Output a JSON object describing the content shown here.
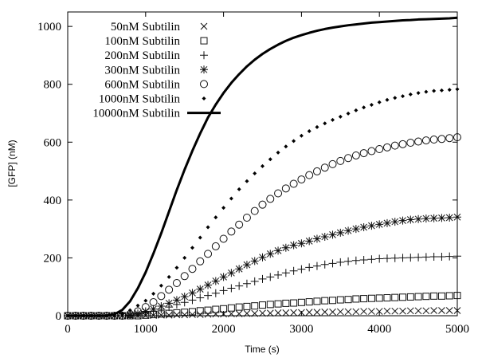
{
  "chart_data": {
    "type": "scatter",
    "title": "",
    "xlabel": "Time (s)",
    "ylabel": "[GFP] (nM)",
    "xlim": [
      0,
      5000
    ],
    "ylim": [
      0,
      1050
    ],
    "xticks": [
      0,
      1000,
      2000,
      3000,
      4000,
      5000
    ],
    "xtick_labels": [
      "0",
      "1000",
      "2000",
      "3000",
      "4000",
      "5000"
    ],
    "yticks": [
      0,
      200,
      400,
      600,
      800,
      1000
    ],
    "ytick_labels": [
      "0",
      "200",
      "400",
      "600",
      "800",
      "1000"
    ],
    "grid": false,
    "legend_position": "top-left",
    "x_start": 0,
    "x_step": 100,
    "series": [
      {
        "name": "50nM Subtilin",
        "marker": "cross-x",
        "values": [
          0,
          0,
          0,
          0,
          0,
          0,
          0,
          0,
          0,
          0,
          1,
          1,
          2,
          2,
          3,
          3,
          4,
          4,
          5,
          6,
          6,
          7,
          7,
          8,
          8,
          9,
          9,
          10,
          10,
          11,
          11,
          12,
          12,
          13,
          13,
          14,
          14,
          14,
          15,
          15,
          15,
          16,
          16,
          16,
          17,
          17,
          17,
          18,
          18,
          18,
          18
        ]
      },
      {
        "name": "100nM Subtilin",
        "marker": "square",
        "values": [
          0,
          0,
          0,
          0,
          0,
          0,
          0,
          0,
          0,
          0,
          2,
          4,
          6,
          8,
          10,
          12,
          14,
          17,
          19,
          22,
          24,
          27,
          30,
          32,
          34,
          37,
          39,
          41,
          43,
          44,
          46,
          48,
          50,
          52,
          53,
          55,
          56,
          58,
          59,
          60,
          61,
          62,
          63,
          64,
          65,
          66,
          67,
          68,
          68,
          69,
          70
        ]
      },
      {
        "name": "200nM Subtilin",
        "marker": "plus",
        "values": [
          0,
          0,
          0,
          0,
          0,
          0,
          0,
          0,
          2,
          5,
          10,
          16,
          22,
          30,
          39,
          46,
          54,
          62,
          70,
          78,
          87,
          95,
          103,
          111,
          119,
          127,
          134,
          141,
          148,
          155,
          161,
          167,
          172,
          177,
          181,
          185,
          188,
          191,
          193,
          195,
          197,
          198,
          199,
          200,
          201,
          202,
          203,
          204,
          204,
          205,
          206
        ]
      },
      {
        "name": "300nM Subtilin",
        "marker": "star",
        "values": [
          0,
          0,
          0,
          0,
          0,
          0,
          0,
          0,
          3,
          8,
          15,
          23,
          33,
          43,
          54,
          66,
          79,
          92,
          106,
          120,
          134,
          148,
          162,
          176,
          189,
          202,
          214,
          225,
          235,
          244,
          250,
          258,
          266,
          273,
          280,
          287,
          294,
          300,
          306,
          311,
          316,
          320,
          325,
          329,
          332,
          334,
          336,
          337,
          338,
          339,
          341
        ]
      },
      {
        "name": "600nM Subtilin",
        "marker": "circle",
        "values": [
          0,
          0,
          0,
          0,
          0,
          0,
          0,
          0,
          5,
          15,
          30,
          47,
          68,
          90,
          113,
          137,
          162,
          188,
          214,
          240,
          266,
          291,
          315,
          339,
          362,
          384,
          404,
          423,
          440,
          456,
          471,
          486,
          499,
          512,
          524,
          535,
          545,
          554,
          562,
          569,
          576,
          582,
          588,
          593,
          598,
          602,
          606,
          609,
          611,
          614,
          617
        ]
      },
      {
        "name": "1000nM Subtilin",
        "marker": "dot",
        "values": [
          0,
          0,
          0,
          0,
          0,
          0,
          0,
          8,
          19,
          35,
          52,
          76,
          104,
          134,
          166,
          200,
          235,
          270,
          306,
          340,
          373,
          405,
          437,
          465,
          492,
          517,
          541,
          564,
          585,
          604,
          622,
          638,
          652,
          665,
          677,
          688,
          699,
          710,
          720,
          729,
          738,
          746,
          753,
          759,
          765,
          770,
          774,
          777,
          779,
          781,
          783
        ]
      },
      {
        "name": "10000nM Subtilin",
        "marker": "line",
        "values": [
          0,
          0,
          0,
          0,
          0,
          0,
          5,
          20,
          50,
          95,
          150,
          215,
          285,
          360,
          435,
          505,
          570,
          630,
          685,
          730,
          770,
          805,
          835,
          862,
          885,
          905,
          922,
          937,
          950,
          961,
          970,
          978,
          985,
          991,
          996,
          1000,
          1004,
          1007,
          1010,
          1013,
          1015,
          1017,
          1019,
          1021,
          1022,
          1024,
          1025,
          1026,
          1027,
          1028,
          1030
        ]
      }
    ]
  }
}
